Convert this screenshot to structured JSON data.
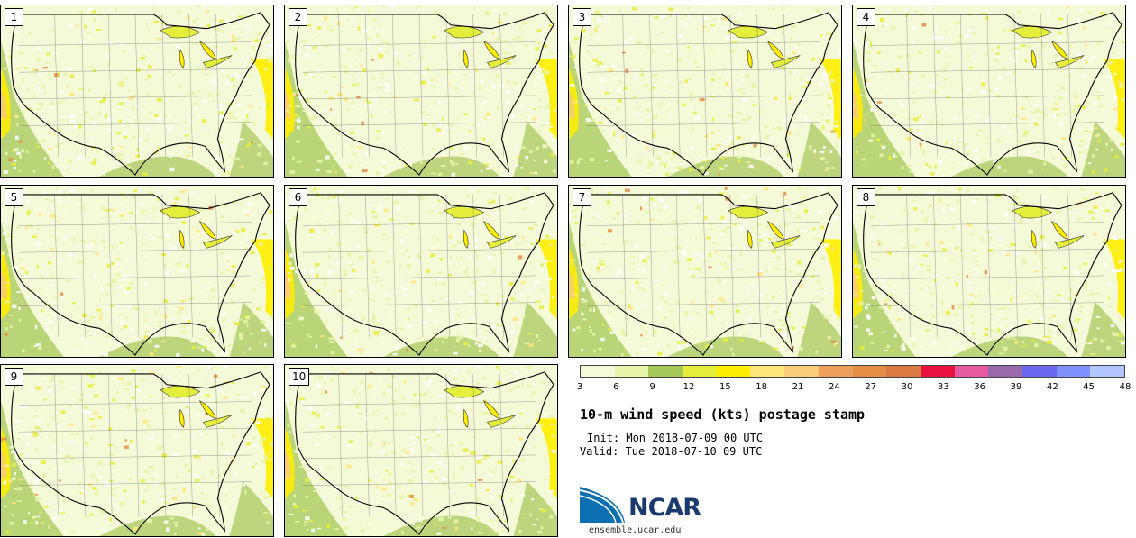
{
  "panels": [
    {
      "label": "1"
    },
    {
      "label": "2"
    },
    {
      "label": "3"
    },
    {
      "label": "4"
    },
    {
      "label": "5"
    },
    {
      "label": "6"
    },
    {
      "label": "7"
    },
    {
      "label": "8"
    },
    {
      "label": "9"
    },
    {
      "label": "10"
    }
  ],
  "colorbar": {
    "colors": [
      "#f4f9d8",
      "#e7f4a9",
      "#a5c858",
      "#e6ee3c",
      "#ffee00",
      "#ffe57a",
      "#f9cc78",
      "#eda05b",
      "#e48e45",
      "#da7a42",
      "#e8133f",
      "#e55aa0",
      "#9a69ab",
      "#6b68f0",
      "#7f91ff",
      "#b3c6ff"
    ],
    "ticks": [
      "3",
      "6",
      "9",
      "12",
      "15",
      "18",
      "21",
      "24",
      "27",
      "30",
      "33",
      "36",
      "39",
      "42",
      "45",
      "48"
    ]
  },
  "title": "10-m wind speed (kts) postage stamp",
  "init": "Init: Mon 2018-07-09 00 UTC",
  "valid": "Valid: Tue 2018-07-10 09 UTC",
  "logo": {
    "text": "NCAR",
    "url": "ensemble.ucar.edu",
    "colors": {
      "blue": "#0b6fb0",
      "navy": "#1a3a6e"
    }
  }
}
